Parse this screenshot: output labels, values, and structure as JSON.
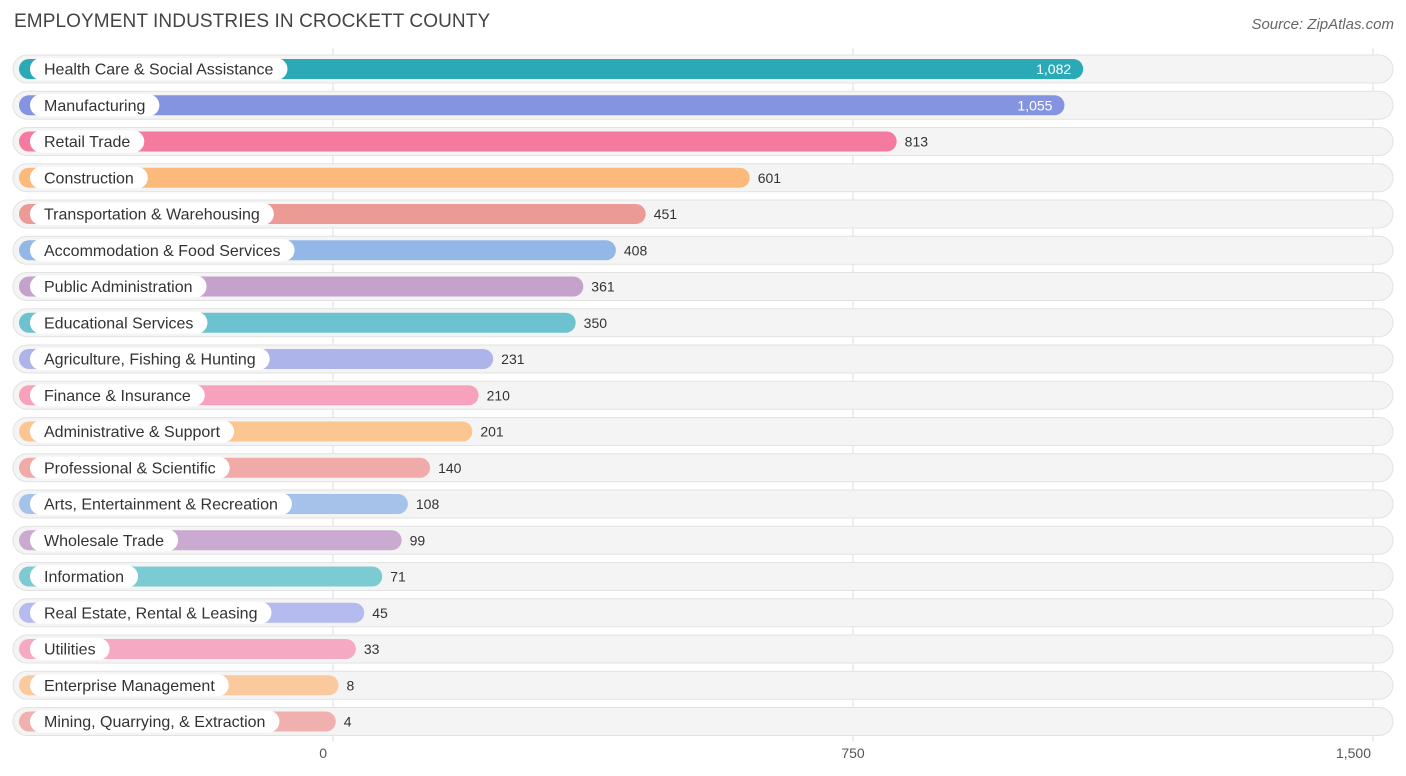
{
  "chart_data": {
    "type": "bar",
    "orientation": "horizontal",
    "title": "EMPLOYMENT INDUSTRIES IN CROCKETT COUNTY",
    "source": "Source: ZipAtlas.com",
    "xlim": [
      0,
      1500
    ],
    "ticks": [
      0,
      750,
      1500
    ],
    "tick_labels": [
      "0",
      "750",
      "1,500"
    ],
    "categories": [
      "Health Care & Social Assistance",
      "Manufacturing",
      "Retail Trade",
      "Construction",
      "Transportation & Warehousing",
      "Accommodation & Food Services",
      "Public Administration",
      "Educational Services",
      "Agriculture, Fishing & Hunting",
      "Finance & Insurance",
      "Administrative & Support",
      "Professional & Scientific",
      "Arts, Entertainment & Recreation",
      "Wholesale Trade",
      "Information",
      "Real Estate, Rental & Leasing",
      "Utilities",
      "Enterprise Management",
      "Mining, Quarrying, & Extraction"
    ],
    "values": [
      1082,
      1055,
      813,
      601,
      451,
      408,
      361,
      350,
      231,
      210,
      201,
      140,
      108,
      99,
      71,
      45,
      33,
      8,
      4
    ],
    "value_labels": [
      "1,082",
      "1,055",
      "813",
      "601",
      "451",
      "408",
      "361",
      "350",
      "231",
      "210",
      "201",
      "140",
      "108",
      "99",
      "71",
      "45",
      "33",
      "8",
      "4"
    ],
    "colors": [
      "#2ba9b6",
      "#8594e0",
      "#f47a9f",
      "#fbb97c",
      "#eb9a96",
      "#93b7e6",
      "#c4a2cb",
      "#6cc2cf",
      "#acb4ea",
      "#f7a1bd",
      "#fbc691",
      "#f0aaa8",
      "#a4c2ea",
      "#cbaad1",
      "#7ccbd2",
      "#b5bbee",
      "#f6a9c2",
      "#fbc99e",
      "#f0b0ad"
    ]
  }
}
